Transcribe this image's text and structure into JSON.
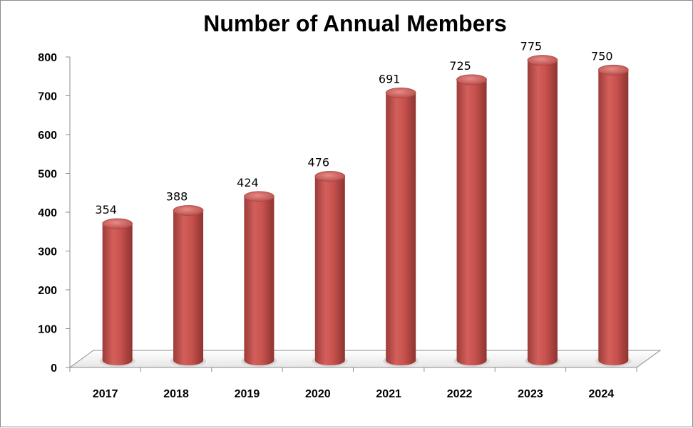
{
  "chart_data": {
    "type": "bar",
    "title": "Number of Annual Members",
    "xlabel": "",
    "ylabel": "",
    "categories": [
      "2017",
      "2018",
      "2019",
      "2020",
      "2021",
      "2022",
      "2023",
      "2024"
    ],
    "series": [
      {
        "values": [
          354,
          388,
          424,
          476,
          691,
          725,
          775,
          750
        ]
      }
    ],
    "data_labels": [
      "354",
      "388",
      "424",
      "476",
      "691",
      "725",
      "775",
      "750"
    ],
    "y_ticks": [
      "0",
      "100",
      "200",
      "300",
      "400",
      "500",
      "600",
      "700",
      "800"
    ],
    "ylim": [
      0,
      800
    ],
    "grid": false,
    "legend": "none",
    "bar_shape": "cylinder",
    "bar_color": "#c0504d"
  }
}
